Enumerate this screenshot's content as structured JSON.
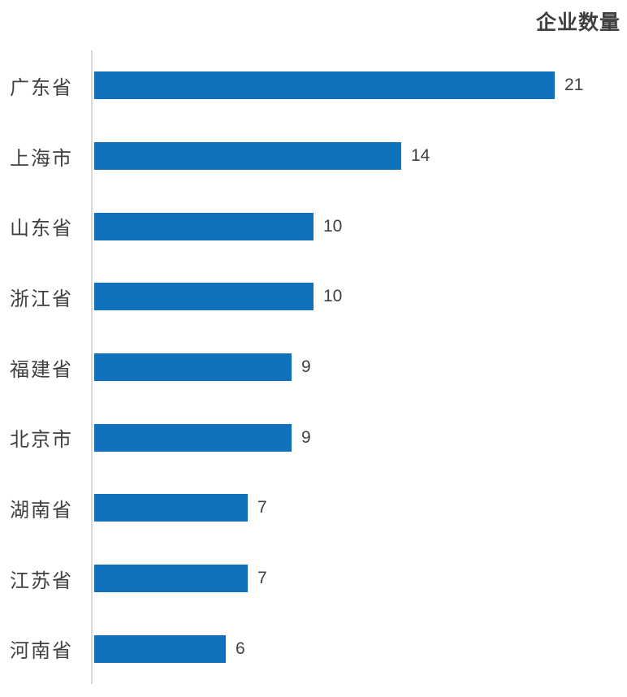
{
  "colors": {
    "bar": "#1072bc",
    "axis_line": "#d9d9d9",
    "text": "#404040",
    "title_text": "#3f3f3f",
    "background": "#ffffff"
  },
  "chart_data": {
    "type": "bar",
    "orientation": "horizontal",
    "title": "企业数量",
    "title_position": "top-right",
    "categories": [
      "广东省",
      "上海市",
      "山东省",
      "浙江省",
      "福建省",
      "北京市",
      "湖南省",
      "江苏省",
      "河南省"
    ],
    "values": [
      21,
      14,
      10,
      10,
      9,
      9,
      7,
      7,
      6
    ],
    "value_labels_shown": true,
    "xlabel": "",
    "ylabel": "",
    "xlim": [
      0,
      21
    ],
    "grid": false,
    "legend": false
  }
}
